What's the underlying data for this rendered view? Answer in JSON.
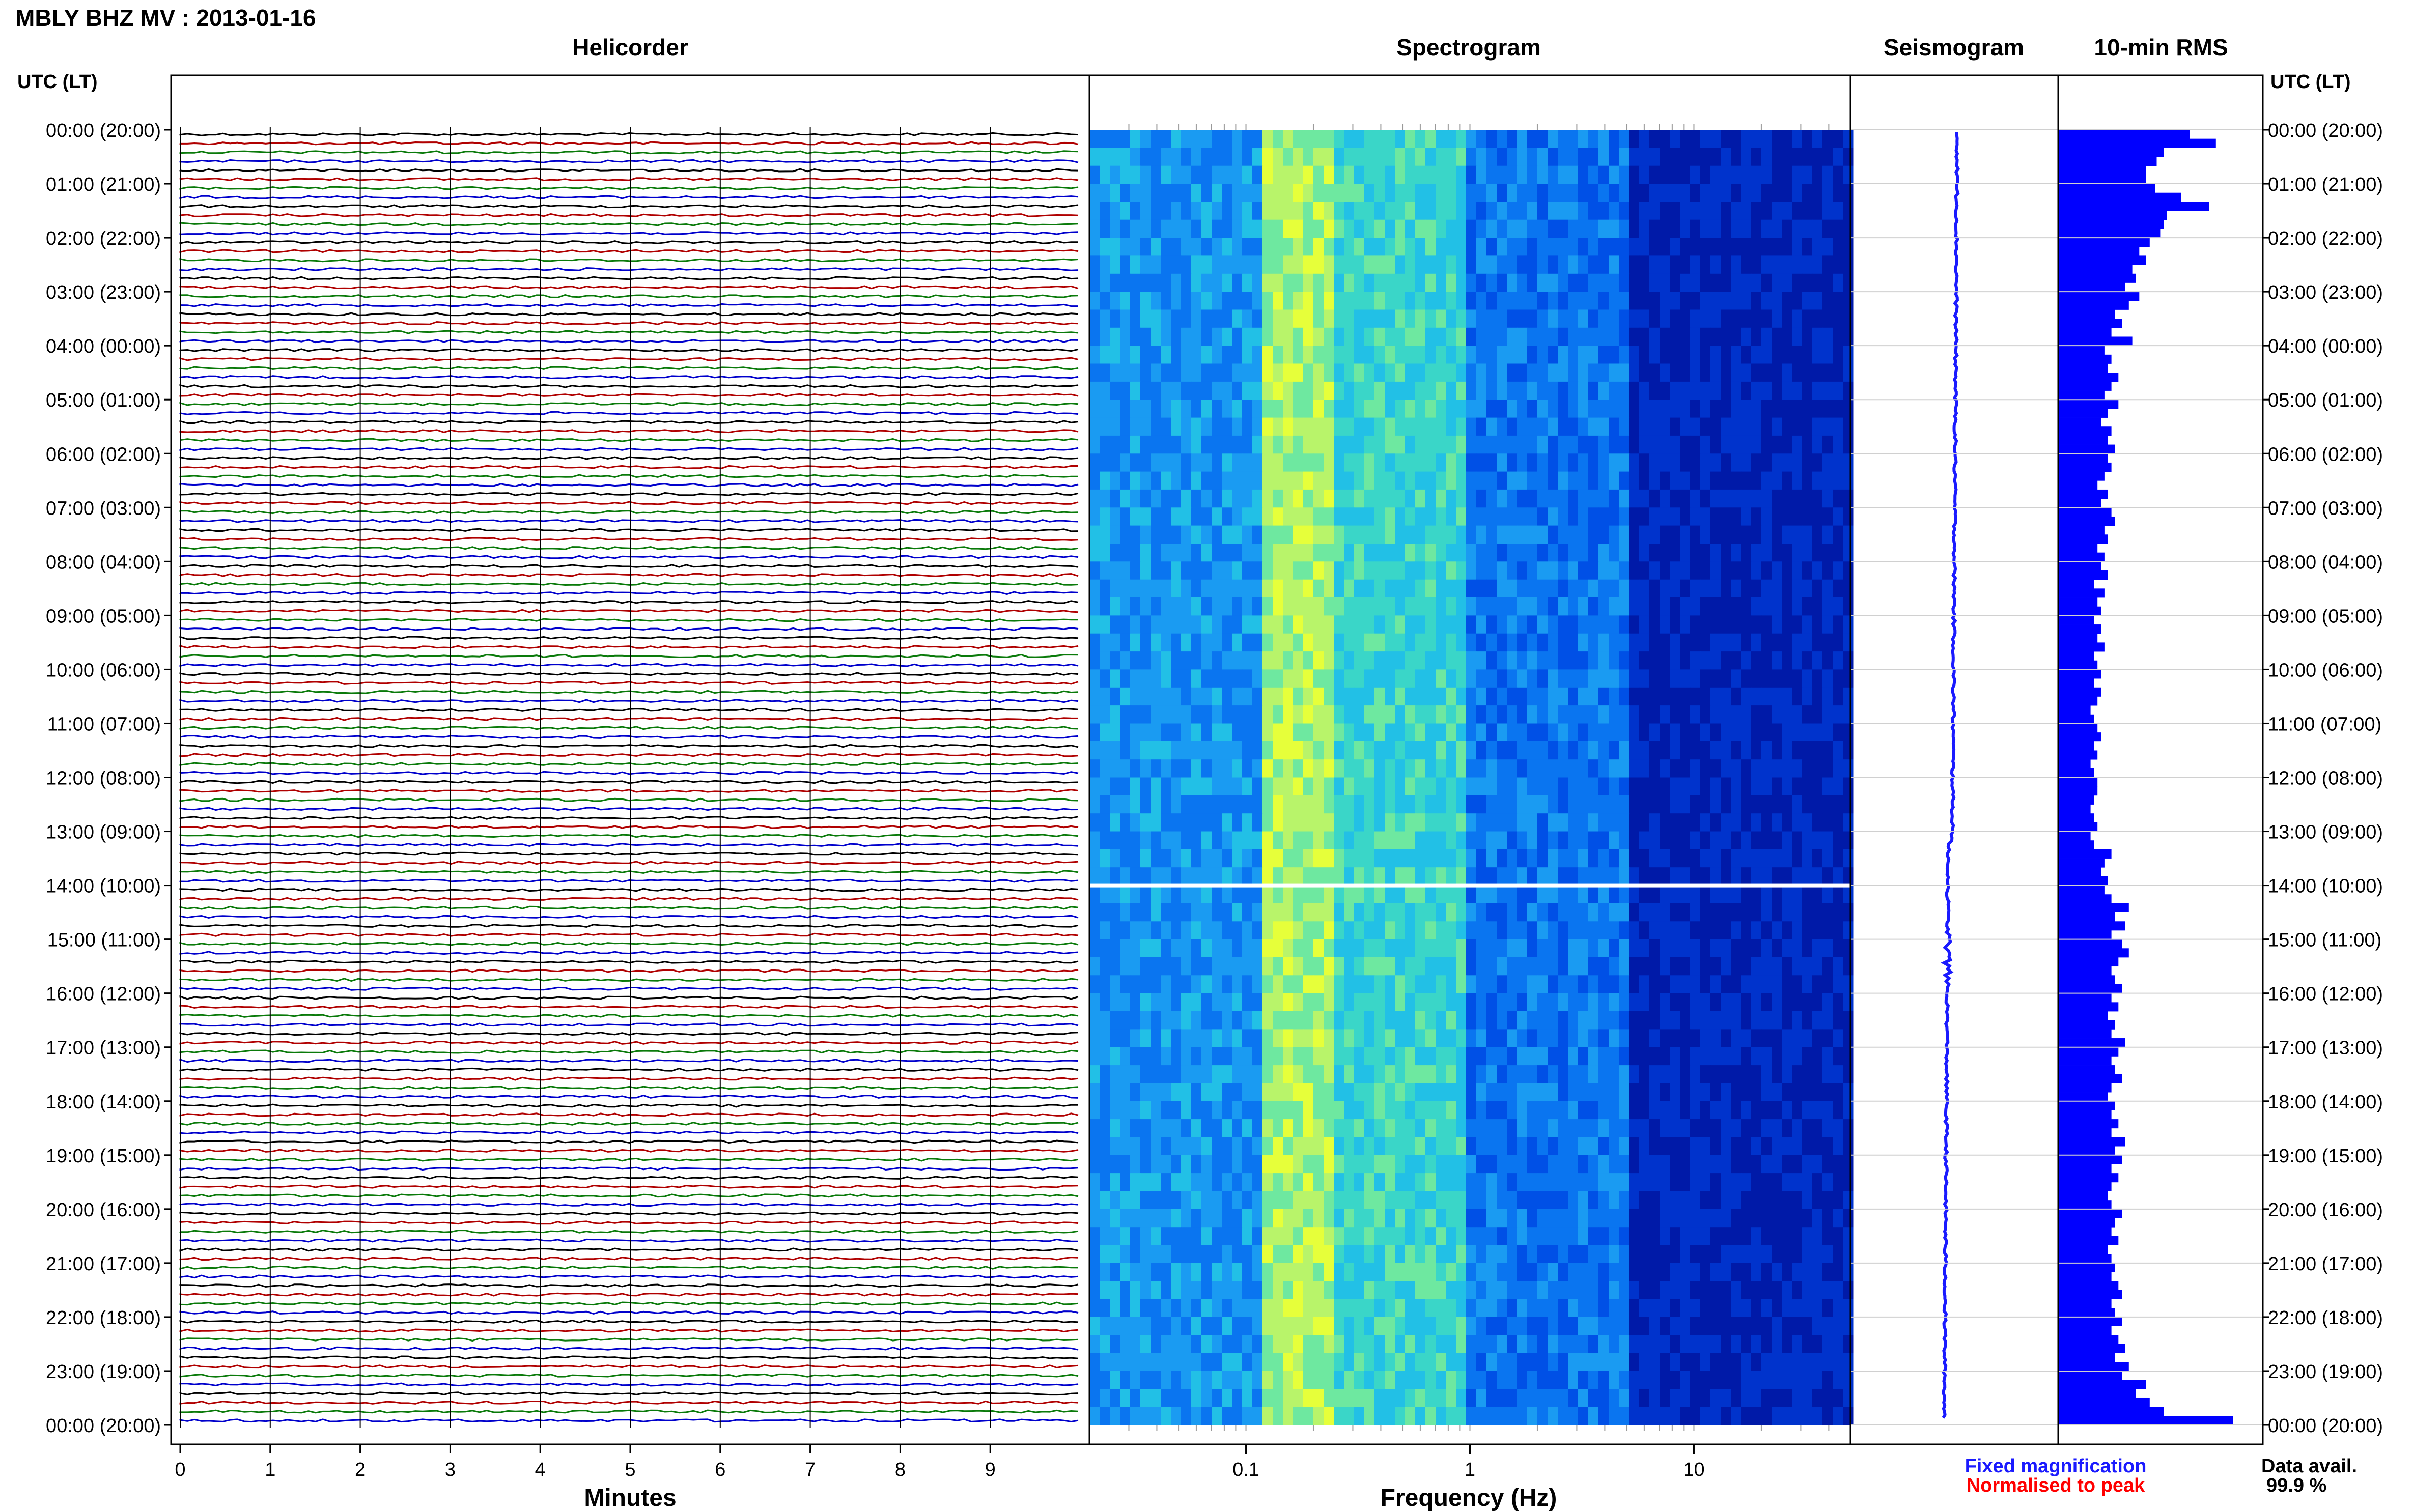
{
  "header": {
    "title": "MBLY BHZ MV : 2013-01-16",
    "utc_label_left": "UTC (LT)",
    "utc_label_right": "UTC (LT)"
  },
  "panels": {
    "helicorder": "Helicorder",
    "spectrogram": "Spectrogram",
    "seismogram": "Seismogram",
    "rms": "10-min RMS"
  },
  "footer": {
    "minutes_label": "Minutes",
    "frequency_label": "Frequency (Hz)",
    "legend_fixed": "Fixed magnification",
    "legend_normalised": "Normalised to peak",
    "data_avail_label": "Data avail.",
    "data_avail_value": "99.9 %"
  },
  "colors": {
    "trace_cycle": [
      "#000000",
      "#b00000",
      "#0a7a0a",
      "#0000cc"
    ],
    "fixed_magnification": "#1a1aff",
    "normalised_to_peak": "#ff0000",
    "rms_bars": "#0000ff",
    "spectrogram_low": "#00007a",
    "spectrogram_high": "#e6ff3a"
  },
  "chart_data": [
    {
      "type": "line",
      "title": "Helicorder",
      "xlabel": "Minutes",
      "x_ticks": [
        "0",
        "1",
        "2",
        "3",
        "4",
        "5",
        "6",
        "7",
        "8",
        "9"
      ],
      "xlim": [
        0,
        10
      ],
      "rows_per_hour": 6,
      "row_count": 144,
      "grid": true
    },
    {
      "type": "heatmap",
      "title": "Spectrogram",
      "xlabel": "Frequency (Hz)",
      "x_scale": "log",
      "x_ticks": [
        "0.1",
        "1",
        "10"
      ],
      "xlim": [
        0.02,
        50
      ],
      "data_gap_utc": "14:00"
    },
    {
      "type": "line",
      "title": "Seismogram",
      "grid": true
    },
    {
      "type": "bar",
      "title": "10-min RMS",
      "orientation": "horizontal",
      "grid": true,
      "values": [
        0.75,
        0.9,
        0.6,
        0.56,
        0.5,
        0.5,
        0.55,
        0.7,
        0.86,
        0.62,
        0.6,
        0.58,
        0.52,
        0.46,
        0.5,
        0.42,
        0.44,
        0.38,
        0.46,
        0.4,
        0.32,
        0.36,
        0.3,
        0.42,
        0.26,
        0.3,
        0.28,
        0.34,
        0.3,
        0.26,
        0.34,
        0.28,
        0.24,
        0.3,
        0.28,
        0.32,
        0.28,
        0.3,
        0.26,
        0.22,
        0.28,
        0.24,
        0.3,
        0.32,
        0.26,
        0.28,
        0.22,
        0.26,
        0.24,
        0.28,
        0.2,
        0.26,
        0.22,
        0.24,
        0.2,
        0.24,
        0.22,
        0.26,
        0.2,
        0.22,
        0.24,
        0.2,
        0.24,
        0.22,
        0.18,
        0.2,
        0.22,
        0.24,
        0.2,
        0.22,
        0.18,
        0.2,
        0.22,
        0.22,
        0.2,
        0.18,
        0.2,
        0.22,
        0.18,
        0.2,
        0.3,
        0.26,
        0.24,
        0.28,
        0.26,
        0.3,
        0.4,
        0.32,
        0.38,
        0.3,
        0.36,
        0.4,
        0.34,
        0.3,
        0.32,
        0.36,
        0.3,
        0.34,
        0.28,
        0.32,
        0.3,
        0.38,
        0.34,
        0.3,
        0.32,
        0.36,
        0.3,
        0.28,
        0.32,
        0.3,
        0.34,
        0.3,
        0.38,
        0.32,
        0.36,
        0.3,
        0.34,
        0.3,
        0.28,
        0.3,
        0.36,
        0.32,
        0.3,
        0.34,
        0.28,
        0.3,
        0.32,
        0.3,
        0.34,
        0.36,
        0.3,
        0.32,
        0.36,
        0.3,
        0.34,
        0.38,
        0.32,
        0.4,
        0.36,
        0.5,
        0.44,
        0.52,
        0.6,
        1.0
      ]
    }
  ],
  "time_axis": {
    "labels": [
      "00:00 (20:00)",
      "01:00 (21:00)",
      "02:00 (22:00)",
      "03:00 (23:00)",
      "04:00 (00:00)",
      "05:00 (01:00)",
      "06:00 (02:00)",
      "07:00 (03:00)",
      "08:00 (04:00)",
      "09:00 (05:00)",
      "10:00 (06:00)",
      "11:00 (07:00)",
      "12:00 (08:00)",
      "13:00 (09:00)",
      "14:00 (10:00)",
      "15:00 (11:00)",
      "16:00 (12:00)",
      "17:00 (13:00)",
      "18:00 (14:00)",
      "19:00 (15:00)",
      "20:00 (16:00)",
      "21:00 (17:00)",
      "22:00 (18:00)",
      "23:00 (19:00)",
      "00:00 (20:00)"
    ]
  }
}
